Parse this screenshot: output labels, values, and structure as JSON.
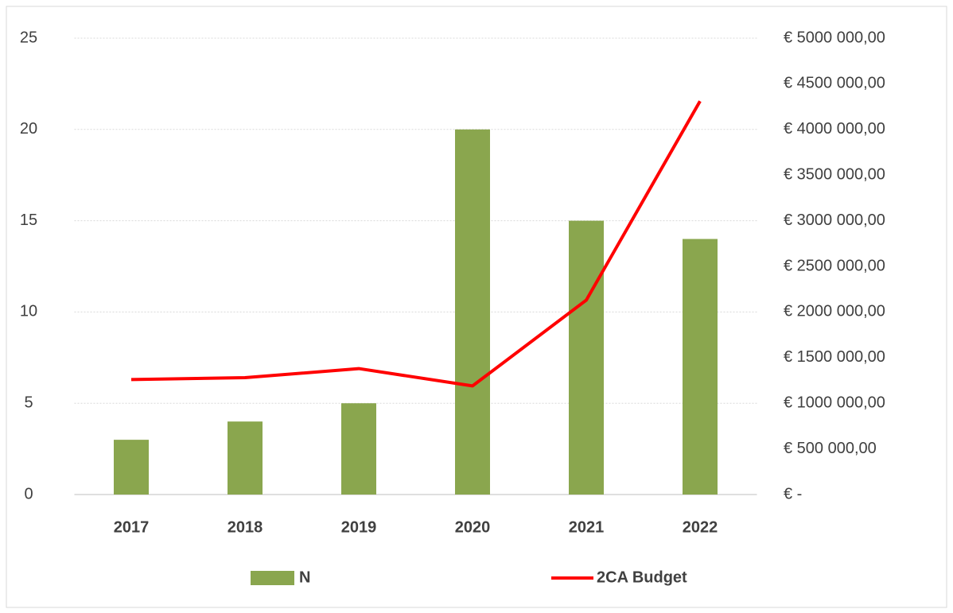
{
  "chart_data": {
    "type": "bar",
    "categories": [
      "2017",
      "2018",
      "2019",
      "2020",
      "2021",
      "2022"
    ],
    "series": [
      {
        "name": "N",
        "color": "#8aa64e",
        "type": "bar",
        "values": [
          3,
          4,
          5,
          20,
          15,
          14
        ]
      },
      {
        "name": "2CA Budget",
        "color": "#ff0000",
        "type": "line",
        "axis": "y2",
        "values": [
          1260000,
          1280000,
          1380000,
          1190000,
          2130000,
          4310000
        ]
      }
    ],
    "ylim": [
      0,
      25
    ],
    "yticks": [
      0,
      5,
      10,
      15,
      20,
      25
    ],
    "y2lim": [
      0,
      5000000
    ],
    "y2ticks": [
      {
        "value": 0,
        "label": "€ -"
      },
      {
        "value": 500000,
        "label": "€ 500 000,00"
      },
      {
        "value": 1000000,
        "label": "€ 1000 000,00"
      },
      {
        "value": 1500000,
        "label": "€ 1500 000,00"
      },
      {
        "value": 2000000,
        "label": "€ 2000 000,00"
      },
      {
        "value": 2500000,
        "label": "€ 2500 000,00"
      },
      {
        "value": 3000000,
        "label": "€ 3000 000,00"
      },
      {
        "value": 3500000,
        "label": "€ 3500 000,00"
      },
      {
        "value": 4000000,
        "label": "€ 4000 000,00"
      },
      {
        "value": 4500000,
        "label": "€ 4500 000,00"
      },
      {
        "value": 5000000,
        "label": "€ 5000 000,00"
      }
    ],
    "grid": true,
    "legend": "bottom"
  }
}
